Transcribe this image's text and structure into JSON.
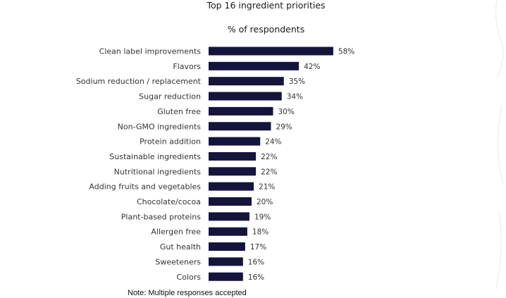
{
  "chart_data": {
    "type": "bar",
    "orientation": "horizontal",
    "title": "Top 16 ingredient priorities",
    "subtitle": "% of respondents",
    "note": "Note: Multiple responses accepted",
    "categories": [
      "Clean label improvements",
      "Flavors",
      "Sodium reduction / replacement",
      "Sugar reduction",
      "Gluten free",
      "Non-GMO ingredients",
      "Protein addition",
      "Sustainable ingredients",
      "Nutritional ingredients",
      "Adding fruits and vegetables",
      "Chocolate/cocoa",
      "Plant-based proteins",
      "Allergen free",
      "Gut health",
      "Sweeteners",
      "Colors"
    ],
    "values": [
      58,
      42,
      35,
      34,
      30,
      29,
      24,
      22,
      22,
      21,
      20,
      19,
      18,
      17,
      16,
      16
    ],
    "value_labels": [
      "58%",
      "42%",
      "35%",
      "34%",
      "30%",
      "29%",
      "24%",
      "22%",
      "22%",
      "21%",
      "20%",
      "19%",
      "18%",
      "17%",
      "16%",
      "16%"
    ],
    "xlim": [
      0,
      100
    ],
    "grid": false,
    "bar_color": "#14143c"
  }
}
